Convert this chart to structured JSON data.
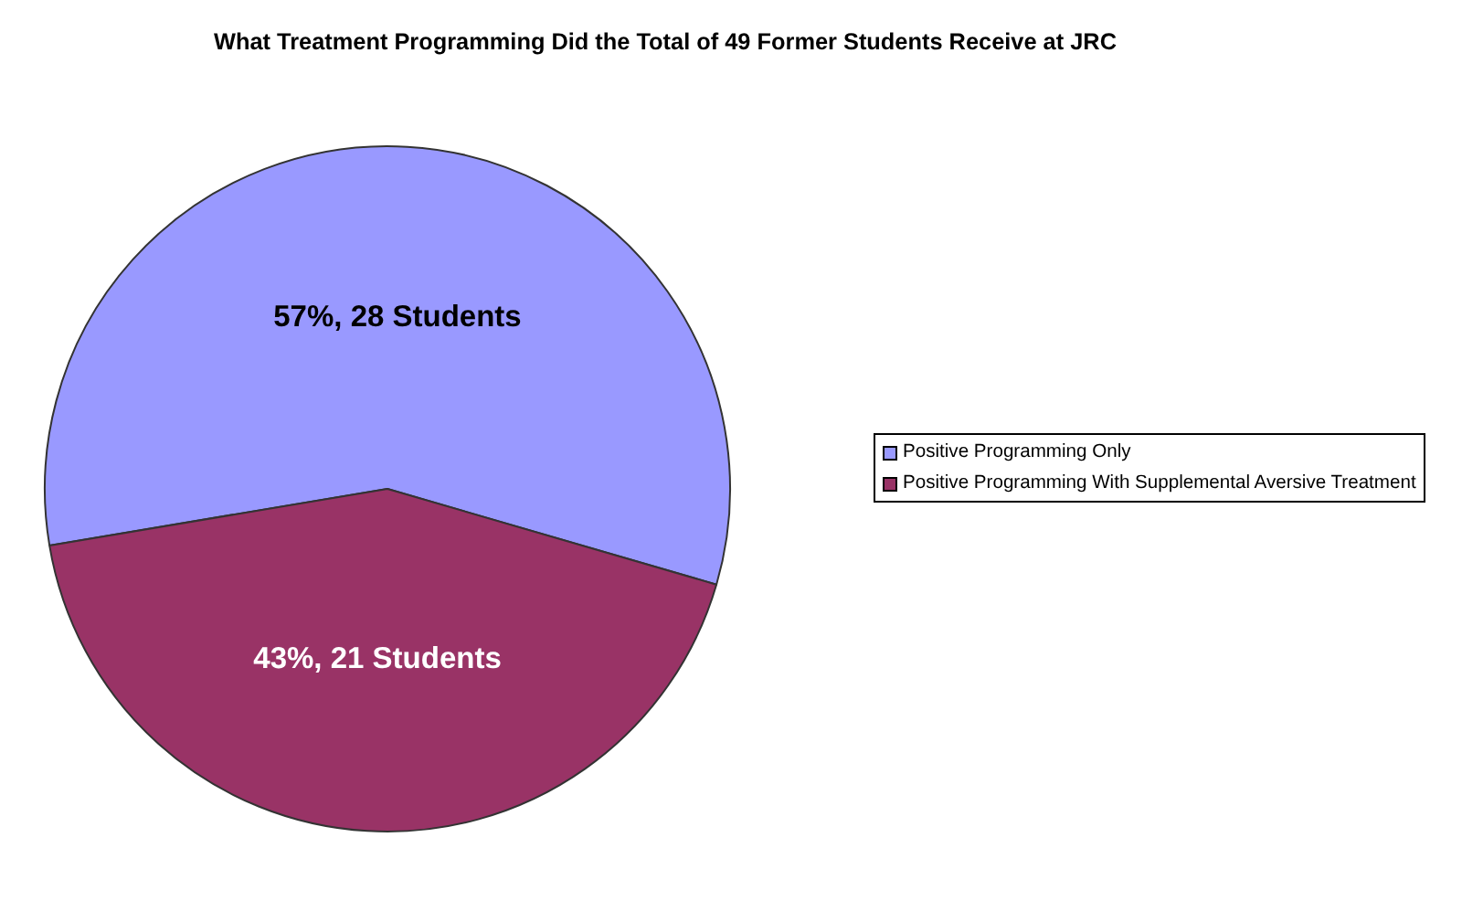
{
  "chart_data": {
    "type": "pie",
    "title": "What Treatment Programming Did the Total of 49 Former Students Receive at JRC",
    "categories": [
      "Positive Programming Only",
      "Positive Programming With Supplemental Aversive Treatment"
    ],
    "values": [
      28,
      21
    ],
    "colors": [
      "#9999ff",
      "#993366"
    ],
    "value_labels": [
      "57%, 28 Students",
      "43%, 21 Students"
    ],
    "legend": "right"
  }
}
